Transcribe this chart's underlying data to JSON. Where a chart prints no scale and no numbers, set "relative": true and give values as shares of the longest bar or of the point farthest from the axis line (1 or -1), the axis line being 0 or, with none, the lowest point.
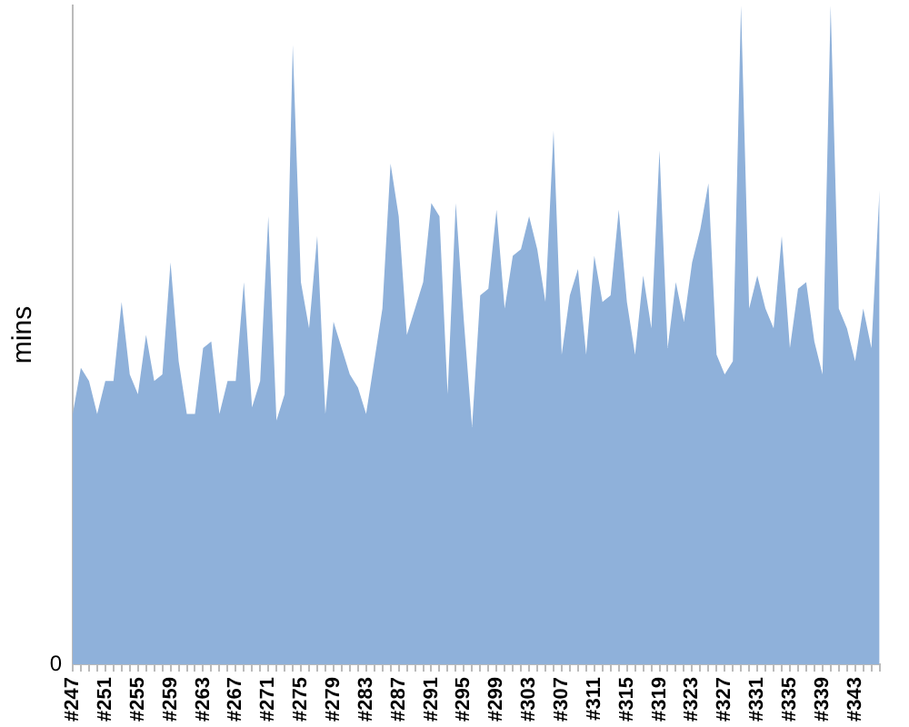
{
  "chart_data": {
    "type": "area",
    "ylabel": "mins",
    "relative": true,
    "annotations": [
      "0"
    ],
    "color": "#8fb1da",
    "grid": false,
    "legend": false,
    "categories": [
      "#247",
      null,
      null,
      null,
      "#251",
      null,
      null,
      null,
      "#255",
      null,
      null,
      null,
      "#259",
      null,
      null,
      null,
      "#263",
      null,
      null,
      null,
      "#267",
      null,
      null,
      null,
      "#271",
      null,
      null,
      null,
      "#275",
      null,
      null,
      null,
      "#279",
      null,
      null,
      null,
      "#283",
      null,
      null,
      null,
      "#287",
      null,
      null,
      null,
      "#291",
      null,
      null,
      null,
      "#295",
      null,
      null,
      null,
      "#299",
      null,
      null,
      null,
      "#303",
      null,
      null,
      null,
      "#307",
      null,
      null,
      null,
      "#311",
      null,
      null,
      null,
      "#315",
      null,
      null,
      null,
      "#319",
      null,
      null,
      null,
      "#323",
      null,
      null,
      null,
      "#327",
      null,
      null,
      null,
      "#331",
      null,
      null,
      null,
      "#335",
      null,
      null,
      null,
      "#339",
      null,
      null,
      null,
      "#343",
      null,
      null,
      null
    ],
    "values": [
      0.38,
      0.45,
      0.43,
      0.38,
      0.43,
      0.43,
      0.55,
      0.44,
      0.41,
      0.5,
      0.43,
      0.44,
      0.61,
      0.46,
      0.38,
      0.38,
      0.48,
      0.49,
      0.38,
      0.43,
      0.43,
      0.58,
      0.39,
      0.43,
      0.68,
      0.37,
      0.41,
      0.94,
      0.58,
      0.51,
      0.65,
      0.38,
      0.52,
      0.48,
      0.44,
      0.42,
      0.38,
      0.46,
      0.54,
      0.76,
      0.68,
      0.5,
      0.54,
      0.58,
      0.7,
      0.68,
      0.41,
      0.7,
      0.52,
      0.36,
      0.56,
      0.57,
      0.69,
      0.54,
      0.62,
      0.63,
      0.68,
      0.63,
      0.55,
      0.81,
      0.47,
      0.56,
      0.6,
      0.47,
      0.62,
      0.55,
      0.56,
      0.69,
      0.55,
      0.47,
      0.59,
      0.51,
      0.78,
      0.48,
      0.58,
      0.52,
      0.61,
      0.66,
      0.73,
      0.47,
      0.44,
      0.46,
      1,
      0.54,
      0.59,
      0.54,
      0.51,
      0.65,
      0.48,
      0.57,
      0.58,
      0.49,
      0.44,
      1,
      0.54,
      0.51,
      0.46,
      0.54,
      0.48,
      0.72
    ]
  }
}
